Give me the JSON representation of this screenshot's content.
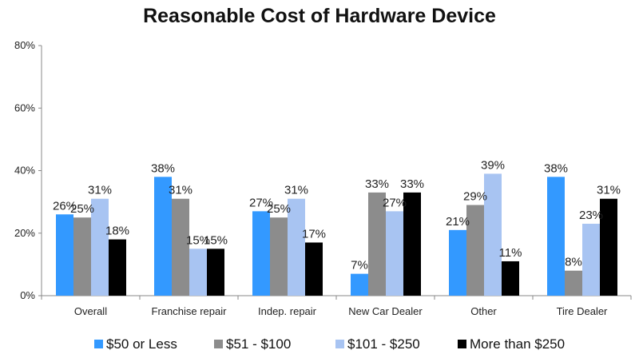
{
  "chart_data": {
    "type": "bar",
    "title": "Reasonable Cost of Hardware Device",
    "categories": [
      "Overall",
      "Franchise repair",
      "Indep. repair",
      "New Car Dealer",
      "Other",
      "Tire Dealer"
    ],
    "series": [
      {
        "name": "$50 or Less",
        "color": "#3399FF",
        "values": [
          26,
          38,
          27,
          7,
          21,
          38
        ],
        "labels": [
          "26%",
          "38%",
          "27%",
          "7%",
          "21%",
          "38%"
        ]
      },
      {
        "name": "$51 - $100",
        "color": "#8C8C8C",
        "values": [
          25,
          31,
          25,
          33,
          29,
          8
        ],
        "labels": [
          "25%",
          "31%",
          "25%",
          "33%",
          "29%",
          "8%"
        ]
      },
      {
        "name": "$101 - $250",
        "color": "#A8C4F2",
        "values": [
          31,
          15,
          31,
          27,
          39,
          23
        ],
        "labels": [
          "31%",
          "15%",
          "31%",
          "27%",
          "39%",
          "23%"
        ]
      },
      {
        "name": "More than $250",
        "color": "#000000",
        "values": [
          18,
          15,
          17,
          33,
          11,
          31
        ],
        "labels": [
          "18%",
          "15%",
          "17%",
          "33%",
          "11%",
          "31%"
        ]
      }
    ],
    "ylim": [
      0,
      80
    ],
    "yticks": [
      "0%",
      "20%",
      "40%",
      "60%",
      "80%"
    ],
    "ytick_values": [
      0,
      20,
      40,
      60,
      80
    ],
    "grid": false,
    "legend_position": "bottom"
  }
}
